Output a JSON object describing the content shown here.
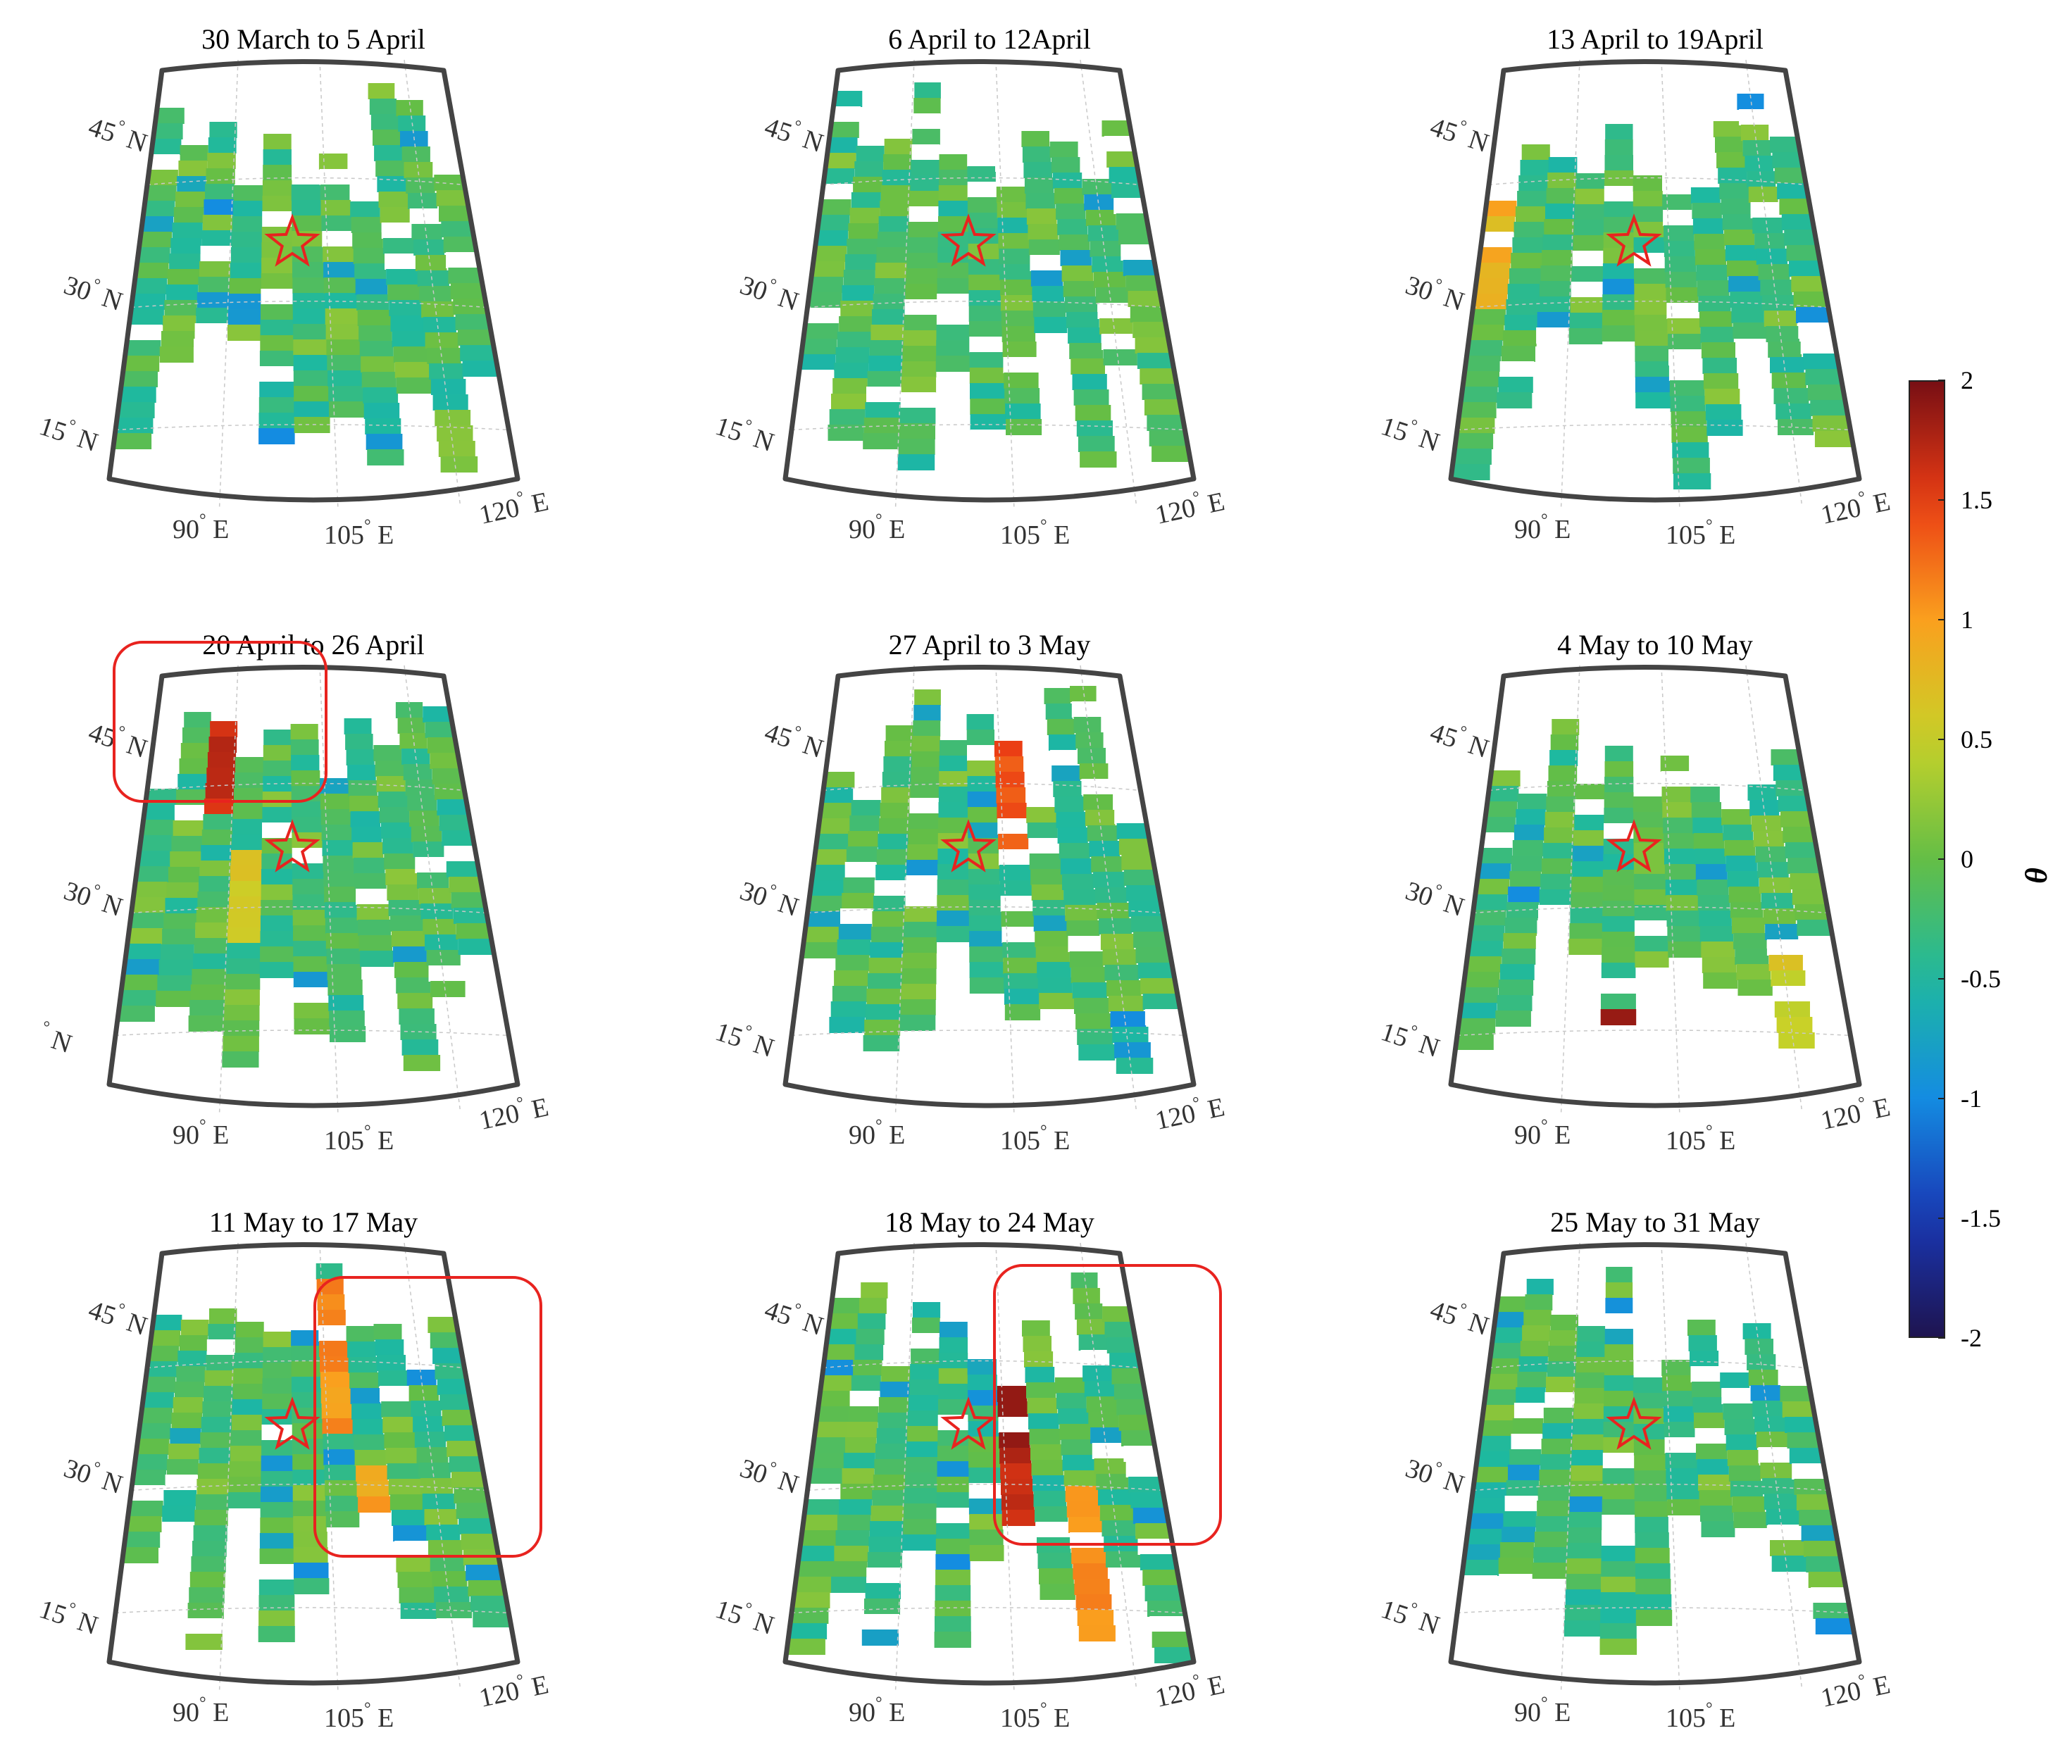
{
  "figure": {
    "panels": [
      {
        "title": "30 March to 5 April",
        "lat_labels": [
          "45",
          "30",
          "15"
        ],
        "lon_labels": [
          "90",
          "105",
          "120"
        ]
      },
      {
        "title": "6 April to 12April",
        "lat_labels": [
          "45",
          "30",
          "15"
        ],
        "lon_labels": [
          "90",
          "105",
          "120"
        ]
      },
      {
        "title": "13 April to 19April",
        "lat_labels": [
          "45",
          "30",
          "15"
        ],
        "lon_labels": [
          "90",
          "105",
          "120"
        ]
      },
      {
        "title": "20 April to 26 April",
        "lat_labels": [
          "45",
          "30",
          ""
        ],
        "lon_labels": [
          "90",
          "105",
          "120"
        ]
      },
      {
        "title": "27 April to 3 May",
        "lat_labels": [
          "45",
          "30",
          "15"
        ],
        "lon_labels": [
          "90",
          "105",
          "120"
        ]
      },
      {
        "title": "4 May to 10 May",
        "lat_labels": [
          "45",
          "30",
          "15"
        ],
        "lon_labels": [
          "90",
          "105",
          "120"
        ]
      },
      {
        "title": "11 May to 17 May",
        "lat_labels": [
          "45",
          "30",
          "15"
        ],
        "lon_labels": [
          "90",
          "105",
          "120"
        ]
      },
      {
        "title": "18 May to 24 May",
        "lat_labels": [
          "45",
          "30",
          "15"
        ],
        "lon_labels": [
          "90",
          "105",
          "120"
        ]
      },
      {
        "title": "25 May to 31 May",
        "lat_labels": [
          "45",
          "30",
          "15"
        ],
        "lon_labels": [
          "90",
          "105",
          "120"
        ]
      }
    ],
    "lat_suffix": "N",
    "lon_suffix": "E",
    "colorbar": {
      "label": "θ",
      "ticks": [
        "2",
        "1.5",
        "1",
        "0.5",
        "0",
        "-0.5",
        "-1",
        "-1.5",
        "-2"
      ],
      "min": -2,
      "max": 2
    },
    "colors": {
      "frame": "#444444",
      "grid": "#c8c8c8",
      "marker": "#e8231f",
      "highlight_box": "#e8231f",
      "missing": "#ffffff"
    },
    "highlighted_panels": [
      3,
      6,
      7
    ],
    "epicenter_marker": "star-icon"
  }
}
